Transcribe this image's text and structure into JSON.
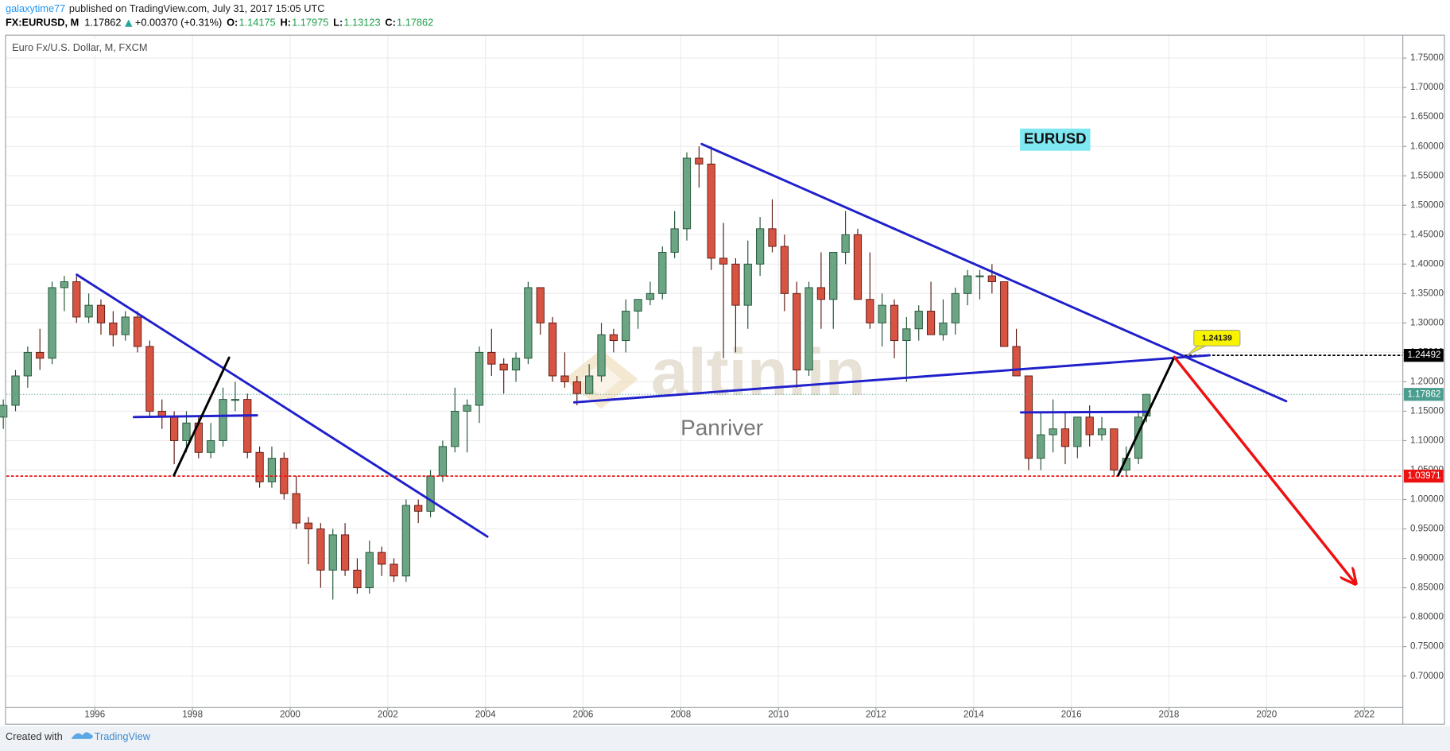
{
  "header": {
    "author": "galaxytime77",
    "published": "published on TradingView.com, July 31, 2017 15:05 UTC",
    "symbol": "FX:EURUSD, M",
    "last": "1.17862",
    "change": "+0.00370 (+0.31%)",
    "ohlc": [
      [
        "O:",
        "1.14175"
      ],
      [
        "H:",
        "1.17975"
      ],
      [
        "L:",
        "1.13123"
      ],
      [
        "C:",
        "1.17862"
      ]
    ]
  },
  "chart_data": {
    "type": "candlestick",
    "title": "Euro Fx/U.S. Dollar, M, FXCM",
    "up_color": "#6ba583",
    "down_color": "#d75442",
    "up_border": "#225437",
    "down_border": "#5b1a13",
    "xlim": [
      1994.19,
      2022.79
    ],
    "ylim": [
      0.6465,
      1.789
    ],
    "xticks": [
      1996,
      1998,
      2000,
      2002,
      2004,
      2006,
      2008,
      2010,
      2012,
      2014,
      2016,
      2018,
      2020,
      2022
    ],
    "yticks": [
      {
        "value": 0.7,
        "label": "0.70000"
      },
      {
        "value": 0.75,
        "label": "0.75000"
      },
      {
        "value": 0.8,
        "label": "0.80000"
      },
      {
        "value": 0.85,
        "label": "0.85000"
      },
      {
        "value": 0.9,
        "label": "0.90000"
      },
      {
        "value": 0.95,
        "label": "0.95000"
      },
      {
        "value": 1.0,
        "label": "1.00000"
      },
      {
        "value": 1.05,
        "label": "1.05000"
      },
      {
        "value": 1.1,
        "label": "1.10000"
      },
      {
        "value": 1.15,
        "label": "1.15000"
      },
      {
        "value": 1.2,
        "label": "1.20000"
      },
      {
        "value": 1.25,
        "label": "1.25000"
      },
      {
        "value": 1.3,
        "label": "1.30000"
      },
      {
        "value": 1.35,
        "label": "1.35000"
      },
      {
        "value": 1.4,
        "label": "1.40000"
      },
      {
        "value": 1.45,
        "label": "1.45000"
      },
      {
        "value": 1.5,
        "label": "1.50000"
      },
      {
        "value": 1.55,
        "label": "1.55000"
      },
      {
        "value": 1.6,
        "label": "1.60000"
      },
      {
        "value": 1.65,
        "label": "1.65000"
      },
      {
        "value": 1.7,
        "label": "1.70000"
      },
      {
        "value": 1.75,
        "label": "1.75000"
      }
    ],
    "grid": true,
    "candles": [
      [
        1994.125,
        1.14,
        1.17,
        1.12,
        1.16
      ],
      [
        1994.375,
        1.16,
        1.22,
        1.15,
        1.21
      ],
      [
        1994.625,
        1.21,
        1.26,
        1.19,
        1.25
      ],
      [
        1994.875,
        1.25,
        1.29,
        1.22,
        1.24
      ],
      [
        1995.125,
        1.24,
        1.37,
        1.23,
        1.36
      ],
      [
        1995.375,
        1.36,
        1.38,
        1.32,
        1.37
      ],
      [
        1995.625,
        1.37,
        1.38,
        1.3,
        1.31
      ],
      [
        1995.875,
        1.31,
        1.35,
        1.3,
        1.33
      ],
      [
        1996.125,
        1.33,
        1.34,
        1.28,
        1.3
      ],
      [
        1996.375,
        1.3,
        1.32,
        1.26,
        1.28
      ],
      [
        1996.625,
        1.28,
        1.32,
        1.27,
        1.31
      ],
      [
        1996.875,
        1.31,
        1.32,
        1.25,
        1.26
      ],
      [
        1997.125,
        1.26,
        1.27,
        1.14,
        1.15
      ],
      [
        1997.375,
        1.15,
        1.17,
        1.12,
        1.14
      ],
      [
        1997.625,
        1.14,
        1.15,
        1.06,
        1.1
      ],
      [
        1997.875,
        1.1,
        1.15,
        1.08,
        1.13
      ],
      [
        1998.125,
        1.13,
        1.14,
        1.07,
        1.08
      ],
      [
        1998.375,
        1.08,
        1.13,
        1.07,
        1.1
      ],
      [
        1998.625,
        1.1,
        1.19,
        1.09,
        1.17
      ],
      [
        1998.875,
        1.17,
        1.2,
        1.15,
        1.17
      ],
      [
        1999.125,
        1.17,
        1.18,
        1.07,
        1.08
      ],
      [
        1999.375,
        1.08,
        1.09,
        1.02,
        1.03
      ],
      [
        1999.625,
        1.03,
        1.09,
        1.02,
        1.07
      ],
      [
        1999.875,
        1.07,
        1.08,
        1.0,
        1.01
      ],
      [
        2000.125,
        1.01,
        1.04,
        0.95,
        0.96
      ],
      [
        2000.375,
        0.96,
        0.97,
        0.89,
        0.95
      ],
      [
        2000.625,
        0.95,
        0.96,
        0.85,
        0.88
      ],
      [
        2000.875,
        0.88,
        0.95,
        0.83,
        0.94
      ],
      [
        2001.125,
        0.94,
        0.96,
        0.87,
        0.88
      ],
      [
        2001.375,
        0.88,
        0.9,
        0.84,
        0.85
      ],
      [
        2001.625,
        0.85,
        0.93,
        0.84,
        0.91
      ],
      [
        2001.875,
        0.91,
        0.92,
        0.87,
        0.89
      ],
      [
        2002.125,
        0.89,
        0.9,
        0.86,
        0.87
      ],
      [
        2002.375,
        0.87,
        1.0,
        0.86,
        0.99
      ],
      [
        2002.625,
        0.99,
        1.0,
        0.96,
        0.98
      ],
      [
        2002.875,
        0.98,
        1.05,
        0.97,
        1.04
      ],
      [
        2003.125,
        1.04,
        1.1,
        1.03,
        1.09
      ],
      [
        2003.375,
        1.09,
        1.19,
        1.08,
        1.15
      ],
      [
        2003.625,
        1.15,
        1.17,
        1.08,
        1.16
      ],
      [
        2003.875,
        1.16,
        1.26,
        1.13,
        1.25
      ],
      [
        2004.125,
        1.25,
        1.29,
        1.21,
        1.23
      ],
      [
        2004.375,
        1.23,
        1.24,
        1.18,
        1.22
      ],
      [
        2004.625,
        1.22,
        1.25,
        1.2,
        1.24
      ],
      [
        2004.875,
        1.24,
        1.37,
        1.23,
        1.36
      ],
      [
        2005.125,
        1.36,
        1.36,
        1.28,
        1.3
      ],
      [
        2005.375,
        1.3,
        1.31,
        1.2,
        1.21
      ],
      [
        2005.625,
        1.21,
        1.25,
        1.19,
        1.2
      ],
      [
        2005.875,
        1.2,
        1.21,
        1.16,
        1.18
      ],
      [
        2006.125,
        1.18,
        1.23,
        1.18,
        1.21
      ],
      [
        2006.375,
        1.21,
        1.3,
        1.2,
        1.28
      ],
      [
        2006.625,
        1.28,
        1.29,
        1.25,
        1.27
      ],
      [
        2006.875,
        1.27,
        1.34,
        1.25,
        1.32
      ],
      [
        2007.125,
        1.32,
        1.34,
        1.29,
        1.34
      ],
      [
        2007.375,
        1.34,
        1.37,
        1.33,
        1.35
      ],
      [
        2007.625,
        1.35,
        1.43,
        1.34,
        1.42
      ],
      [
        2007.875,
        1.42,
        1.49,
        1.41,
        1.46
      ],
      [
        2008.125,
        1.46,
        1.59,
        1.44,
        1.58
      ],
      [
        2008.375,
        1.58,
        1.6,
        1.53,
        1.57
      ],
      [
        2008.625,
        1.57,
        1.6,
        1.39,
        1.41
      ],
      [
        2008.875,
        1.41,
        1.47,
        1.24,
        1.4
      ],
      [
        2009.125,
        1.4,
        1.41,
        1.25,
        1.33
      ],
      [
        2009.375,
        1.33,
        1.44,
        1.29,
        1.4
      ],
      [
        2009.625,
        1.4,
        1.48,
        1.38,
        1.46
      ],
      [
        2009.875,
        1.46,
        1.51,
        1.42,
        1.43
      ],
      [
        2010.125,
        1.43,
        1.45,
        1.32,
        1.35
      ],
      [
        2010.375,
        1.35,
        1.37,
        1.19,
        1.22
      ],
      [
        2010.625,
        1.22,
        1.37,
        1.21,
        1.36
      ],
      [
        2010.875,
        1.36,
        1.42,
        1.29,
        1.34
      ],
      [
        2011.125,
        1.34,
        1.42,
        1.29,
        1.42
      ],
      [
        2011.375,
        1.42,
        1.49,
        1.4,
        1.45
      ],
      [
        2011.625,
        1.45,
        1.46,
        1.34,
        1.34
      ],
      [
        2011.875,
        1.34,
        1.42,
        1.29,
        1.3
      ],
      [
        2012.125,
        1.3,
        1.35,
        1.26,
        1.33
      ],
      [
        2012.375,
        1.33,
        1.34,
        1.24,
        1.27
      ],
      [
        2012.625,
        1.27,
        1.31,
        1.2,
        1.29
      ],
      [
        2012.875,
        1.29,
        1.33,
        1.27,
        1.32
      ],
      [
        2013.125,
        1.32,
        1.37,
        1.28,
        1.28
      ],
      [
        2013.375,
        1.28,
        1.34,
        1.27,
        1.3
      ],
      [
        2013.625,
        1.3,
        1.36,
        1.28,
        1.35
      ],
      [
        2013.875,
        1.35,
        1.39,
        1.33,
        1.38
      ],
      [
        2014.125,
        1.38,
        1.39,
        1.34,
        1.38
      ],
      [
        2014.375,
        1.38,
        1.4,
        1.35,
        1.37
      ],
      [
        2014.625,
        1.37,
        1.37,
        1.26,
        1.26
      ],
      [
        2014.875,
        1.26,
        1.29,
        1.21,
        1.21
      ],
      [
        2015.125,
        1.21,
        1.21,
        1.05,
        1.07
      ],
      [
        2015.375,
        1.07,
        1.15,
        1.05,
        1.11
      ],
      [
        2015.625,
        1.11,
        1.17,
        1.08,
        1.12
      ],
      [
        2015.875,
        1.12,
        1.15,
        1.06,
        1.09
      ],
      [
        2016.125,
        1.09,
        1.14,
        1.07,
        1.14
      ],
      [
        2016.375,
        1.14,
        1.16,
        1.09,
        1.11
      ],
      [
        2016.625,
        1.11,
        1.14,
        1.1,
        1.12
      ],
      [
        2016.875,
        1.12,
        1.12,
        1.04,
        1.05
      ],
      [
        2017.125,
        1.05,
        1.09,
        1.04,
        1.07
      ],
      [
        2017.375,
        1.07,
        1.15,
        1.06,
        1.14
      ],
      [
        2017.54,
        1.14175,
        1.17975,
        1.13123,
        1.17862
      ]
    ],
    "trendlines": [
      {
        "color": "#1f1fcc",
        "points": [
          [
            1995.63,
            1.382
          ],
          [
            2004.04,
            0.937
          ]
        ]
      },
      {
        "color": "#1f1fcc",
        "points": [
          [
            1996.8,
            1.14
          ],
          [
            1999.32,
            1.143
          ]
        ]
      },
      {
        "color": "#000000",
        "points": [
          [
            1997.62,
            1.041
          ],
          [
            1998.75,
            1.241
          ]
        ]
      },
      {
        "color": "#1f1fcc",
        "points": [
          [
            2008.43,
            1.604
          ],
          [
            2020.4,
            1.167
          ]
        ]
      },
      {
        "color": "#1f1fcc",
        "points": [
          [
            2005.82,
            1.165
          ],
          [
            2018.83,
            1.245
          ]
        ]
      },
      {
        "color": "#1f1fcc",
        "points": [
          [
            2014.97,
            1.148
          ],
          [
            2017.54,
            1.149
          ]
        ]
      },
      {
        "color": "#000000",
        "points": [
          [
            2016.96,
            1.041
          ],
          [
            2018.11,
            1.242
          ]
        ]
      },
      {
        "color": "#ee1111",
        "arrow": true,
        "points": [
          [
            2018.11,
            1.242
          ],
          [
            2021.82,
            0.857
          ]
        ]
      }
    ],
    "price_lines": [
      {
        "value": 1.24492,
        "color": "#000000",
        "style": "dashed",
        "from": 2018.32
      },
      {
        "value": 1.17862,
        "color": "#4a9e8f",
        "style": "dotted"
      },
      {
        "value": 1.03971,
        "color": "#ee1111",
        "style": "dashed"
      }
    ],
    "annotations": [
      "EURUSD",
      "1.24139"
    ],
    "watermark": [
      "altin.in",
      "Panriver"
    ]
  },
  "footer": {
    "created": "Created with",
    "brand": "TradingView"
  }
}
